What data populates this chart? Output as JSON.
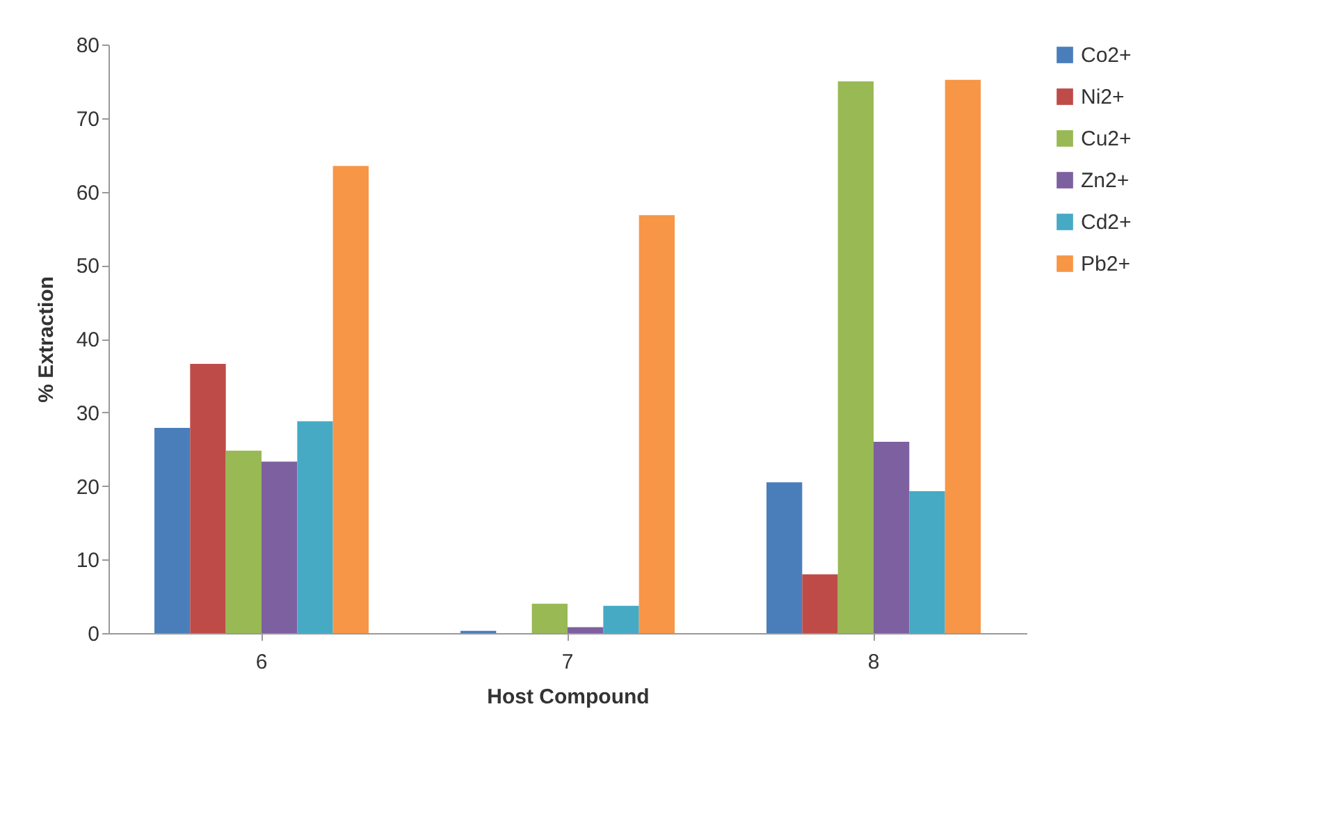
{
  "chart_data": {
    "type": "bar",
    "xlabel": "Host Compound",
    "ylabel": "% Extraction",
    "categories": [
      "6",
      "7",
      "8"
    ],
    "series": [
      {
        "name": "Co2+",
        "color": "#4a7ebb",
        "values": [
          27.9,
          0.3,
          20.5
        ]
      },
      {
        "name": "Ni2+",
        "color": "#be4b48",
        "values": [
          36.6,
          0,
          8
        ]
      },
      {
        "name": "Cu2+",
        "color": "#98b954",
        "values": [
          24.8,
          4,
          75
        ]
      },
      {
        "name": "Zn2+",
        "color": "#7d60a0",
        "values": [
          23.3,
          0.8,
          26
        ]
      },
      {
        "name": "Cd2+",
        "color": "#46aac5",
        "values": [
          28.8,
          3.7,
          19.3
        ]
      },
      {
        "name": "Pb2+",
        "color": "#f79646",
        "values": [
          63.5,
          56.8,
          75.2
        ]
      }
    ],
    "ylim": [
      0,
      80
    ],
    "yticks": [
      0,
      10,
      20,
      30,
      40,
      50,
      60,
      70,
      80
    ],
    "grid": false,
    "legend": "right"
  }
}
